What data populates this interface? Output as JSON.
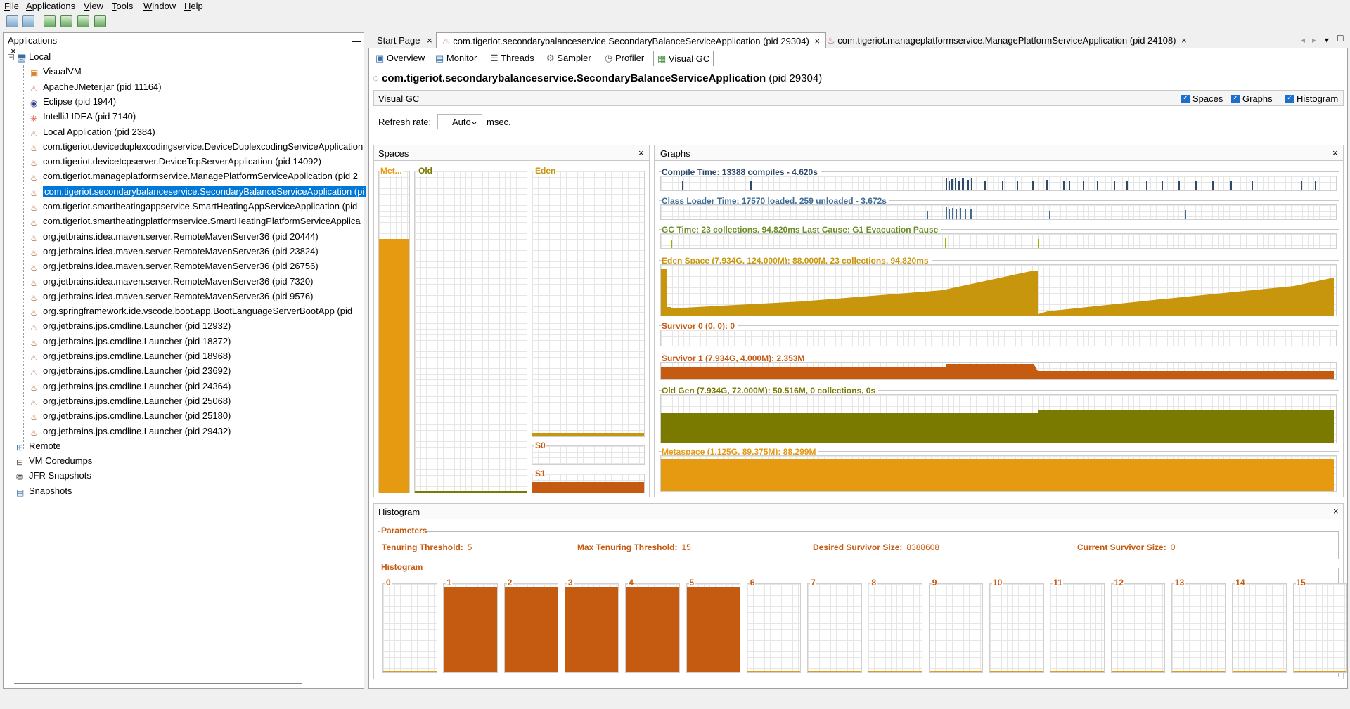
{
  "menu": [
    "File",
    "Applications",
    "View",
    "Tools",
    "Window",
    "Help"
  ],
  "left_panel": {
    "tab_label": "Applications",
    "tree": [
      {
        "label": "Local",
        "level": 0,
        "icon": "computer-icon"
      },
      {
        "label": "VisualVM",
        "level": 1,
        "icon": "visualvm-icon"
      },
      {
        "label": "ApacheJMeter.jar (pid 11164)",
        "level": 1,
        "icon": "java-icon"
      },
      {
        "label": "Eclipse (pid 1944)",
        "level": 1,
        "icon": "eclipse-icon"
      },
      {
        "label": "IntelliJ IDEA (pid 7140)",
        "level": 1,
        "icon": "intellij-icon"
      },
      {
        "label": "Local Application (pid 2384)",
        "level": 1,
        "icon": "java-icon"
      },
      {
        "label": "com.tigeriot.deviceduplexcodingservice.DeviceDuplexcodingServiceApplication",
        "level": 1,
        "icon": "java-icon"
      },
      {
        "label": "com.tigeriot.devicetcpserver.DeviceTcpServerApplication (pid 14092)",
        "level": 1,
        "icon": "java-icon"
      },
      {
        "label": "com.tigeriot.manageplatformservice.ManagePlatformServiceApplication (pid 2",
        "level": 1,
        "icon": "java-icon"
      },
      {
        "label": "com.tigeriot.secondarybalanceservice.SecondaryBalanceServiceApplication (pi",
        "level": 1,
        "icon": "java-icon",
        "selected": true
      },
      {
        "label": "com.tigeriot.smartheatingappservice.SmartHeatingAppServiceApplication (pid",
        "level": 1,
        "icon": "java-icon"
      },
      {
        "label": "com.tigeriot.smartheatingplatformservice.SmartHeatingPlatformServiceApplica",
        "level": 1,
        "icon": "java-icon"
      },
      {
        "label": "org.jetbrains.idea.maven.server.RemoteMavenServer36 (pid 20444)",
        "level": 1,
        "icon": "java-icon"
      },
      {
        "label": "org.jetbrains.idea.maven.server.RemoteMavenServer36 (pid 23824)",
        "level": 1,
        "icon": "java-icon"
      },
      {
        "label": "org.jetbrains.idea.maven.server.RemoteMavenServer36 (pid 26756)",
        "level": 1,
        "icon": "java-icon"
      },
      {
        "label": "org.jetbrains.idea.maven.server.RemoteMavenServer36 (pid 7320)",
        "level": 1,
        "icon": "java-icon"
      },
      {
        "label": "org.jetbrains.idea.maven.server.RemoteMavenServer36 (pid 9576)",
        "level": 1,
        "icon": "java-icon"
      },
      {
        "label": "org.springframework.ide.vscode.boot.app.BootLanguageServerBootApp (pid",
        "level": 1,
        "icon": "java-icon"
      },
      {
        "label": "org.jetbrains.jps.cmdline.Launcher (pid 12932)",
        "level": 1,
        "icon": "java-icon"
      },
      {
        "label": "org.jetbrains.jps.cmdline.Launcher (pid 18372)",
        "level": 1,
        "icon": "java-icon"
      },
      {
        "label": "org.jetbrains.jps.cmdline.Launcher (pid 18968)",
        "level": 1,
        "icon": "java-icon"
      },
      {
        "label": "org.jetbrains.jps.cmdline.Launcher (pid 23692)",
        "level": 1,
        "icon": "java-icon"
      },
      {
        "label": "org.jetbrains.jps.cmdline.Launcher (pid 24364)",
        "level": 1,
        "icon": "java-icon"
      },
      {
        "label": "org.jetbrains.jps.cmdline.Launcher (pid 25068)",
        "level": 1,
        "icon": "java-icon"
      },
      {
        "label": "org.jetbrains.jps.cmdline.Launcher (pid 25180)",
        "level": 1,
        "icon": "java-icon"
      },
      {
        "label": "org.jetbrains.jps.cmdline.Launcher (pid 29432)",
        "level": 1,
        "icon": "java-icon"
      },
      {
        "label": "Remote",
        "level": 0,
        "icon": "remote-icon"
      },
      {
        "label": "VM Coredumps",
        "level": 0,
        "icon": "coredump-icon"
      },
      {
        "label": "JFR Snapshots",
        "level": 0,
        "icon": "jfr-icon"
      },
      {
        "label": "Snapshots",
        "level": 0,
        "icon": "snapshot-icon"
      }
    ]
  },
  "doc_tabs": [
    {
      "label": "Start Page"
    },
    {
      "label": "com.tigeriot.secondarybalanceservice.SecondaryBalanceServiceApplication (pid 29304)",
      "active": true
    },
    {
      "label": "com.tigeriot.manageplatformservice.ManagePlatformServiceApplication (pid 24108)"
    }
  ],
  "sub_tabs": [
    "Overview",
    "Monitor",
    "Threads",
    "Sampler",
    "Profiler",
    "Visual GC"
  ],
  "app_header": {
    "name": "com.tigeriot.secondarybalanceservice.SecondaryBalanceServiceApplication",
    "pid": "(pid 29304)"
  },
  "visual_gc": {
    "label": "Visual GC",
    "checkboxes": [
      "Spaces",
      "Graphs",
      "Histogram"
    ],
    "refresh_label": "Refresh rate:",
    "refresh_value": "Auto",
    "refresh_unit": "msec."
  },
  "spaces": {
    "title": "Spaces",
    "labels": {
      "metaspace": "Met...",
      "old": "Old",
      "eden": "Eden",
      "s0": "S0",
      "s1": "S1"
    },
    "fill": {
      "metaspace": 0.79,
      "old": 0.005,
      "eden": 0.012,
      "s0": 0.0,
      "s1": 0.59
    }
  },
  "graphs": {
    "title": "Graphs",
    "items": [
      {
        "title": "Compile Time: 13388 compiles - 4.620s",
        "color": "#2e4a6b"
      },
      {
        "title": "Class Loader Time: 17570 loaded, 259 unloaded - 3.672s",
        "color": "#3e6b94"
      },
      {
        "title": "GC Time: 23 collections, 94.820ms Last Cause: G1 Evacuation Pause",
        "color": "#6b8e23"
      },
      {
        "title": "Eden Space (7.934G, 124.000M): 88.000M, 23 collections, 94.820ms",
        "color": "#c8960c"
      },
      {
        "title": "Survivor 0 (0, 0): 0",
        "color": "#c55a11"
      },
      {
        "title": "Survivor 1 (7.934G, 4.000M): 2.353M",
        "color": "#c55a11"
      },
      {
        "title": "Old Gen (7.934G, 72.000M): 50.516M, 0 collections, 0s",
        "color": "#7a7a00"
      },
      {
        "title": "Metaspace (1.125G, 89.375M): 88.299M",
        "color": "#e69a12"
      }
    ]
  },
  "histogram": {
    "title": "Histogram",
    "params_title": "Parameters",
    "params": [
      {
        "label": "Tenuring Threshold:",
        "value": "5"
      },
      {
        "label": "Max Tenuring Threshold:",
        "value": "15"
      },
      {
        "label": "Desired Survivor Size:",
        "value": "8388608"
      },
      {
        "label": "Current Survivor Size:",
        "value": "0"
      }
    ],
    "hist_title": "Histogram",
    "bins": [
      "0",
      "1",
      "2",
      "3",
      "4",
      "5",
      "6",
      "7",
      "8",
      "9",
      "10",
      "11",
      "12",
      "13",
      "14",
      "15"
    ],
    "bin_fill": [
      0,
      0.97,
      0.97,
      0.97,
      0.97,
      0.97,
      0,
      0,
      0,
      0,
      0,
      0,
      0,
      0,
      0,
      0
    ]
  },
  "colors": {
    "accent": "#c55a11",
    "selection": "#0078d7",
    "eden": "#c8960c",
    "old": "#7a7a00",
    "meta": "#e69a12"
  }
}
